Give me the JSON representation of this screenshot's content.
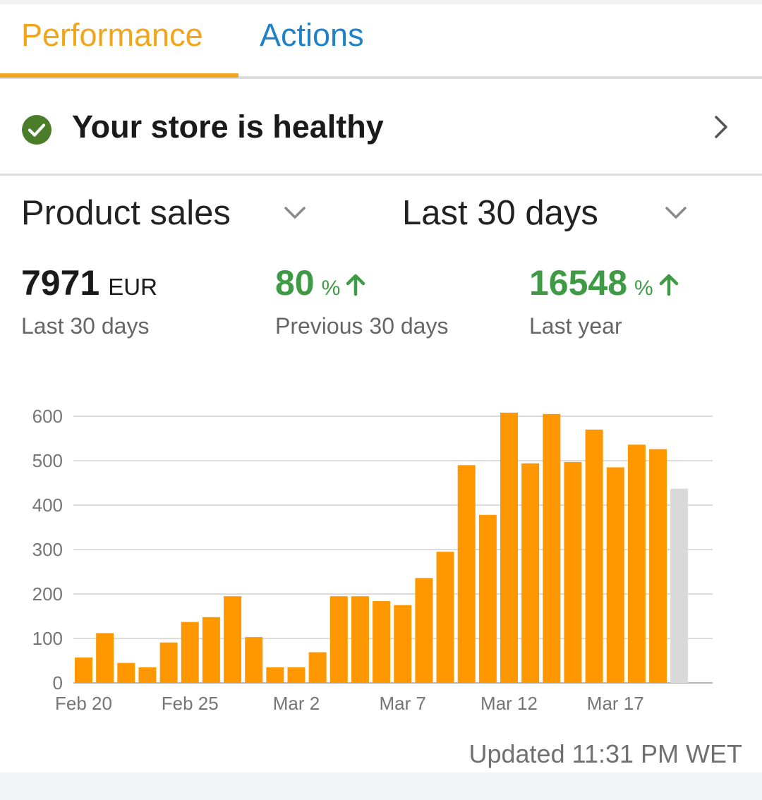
{
  "tabs": [
    {
      "label": "Performance",
      "active": true
    },
    {
      "label": "Actions",
      "active": false
    }
  ],
  "health": {
    "status_text": "Your store is healthy",
    "icon": "check-circle-icon",
    "color": "#4a7d29"
  },
  "selectors": {
    "metric": "Product sales",
    "range": "Last 30 days"
  },
  "stats": [
    {
      "value": "7971",
      "unit": "EUR",
      "label": "Last 30 days",
      "trend": "none"
    },
    {
      "value": "80",
      "unit": "%",
      "label": "Previous 30 days",
      "trend": "up"
    },
    {
      "value": "16548",
      "unit": "%",
      "label": "Last year",
      "trend": "up"
    }
  ],
  "colors": {
    "accent": "#f0a51a",
    "link": "#1f82c8",
    "positive": "#3e9a44",
    "bar": "#ff9800",
    "bar_partial": "#d9d9d9"
  },
  "chart_data": {
    "type": "bar",
    "categories": [
      "Feb 20",
      "Feb 21",
      "Feb 22",
      "Feb 23",
      "Feb 24",
      "Feb 25",
      "Feb 26",
      "Feb 27",
      "Feb 28",
      "Mar 1",
      "Mar 2",
      "Mar 3",
      "Mar 4",
      "Mar 5",
      "Mar 6",
      "Mar 7",
      "Mar 8",
      "Mar 9",
      "Mar 10",
      "Mar 11",
      "Mar 12",
      "Mar 13",
      "Mar 14",
      "Mar 15",
      "Mar 16",
      "Mar 17",
      "Mar 18",
      "Mar 19",
      "Mar 20"
    ],
    "values": [
      57,
      112,
      45,
      35,
      91,
      137,
      148,
      195,
      103,
      35,
      35,
      69,
      195,
      195,
      184,
      175,
      236,
      295,
      490,
      378,
      608,
      494,
      605,
      497,
      570,
      485,
      536,
      526,
      437
    ],
    "last_bar_partial": true,
    "ylim": [
      0,
      600
    ],
    "yticks": [
      0,
      100,
      200,
      300,
      400,
      500,
      600
    ],
    "xtick_labels": [
      "Feb 20",
      "Feb 25",
      "Mar 2",
      "Mar 7",
      "Mar 12",
      "Mar 17"
    ],
    "xtick_every": 5,
    "grid": true,
    "legend": "none"
  },
  "updated_text": "Updated 11:31 PM WET"
}
